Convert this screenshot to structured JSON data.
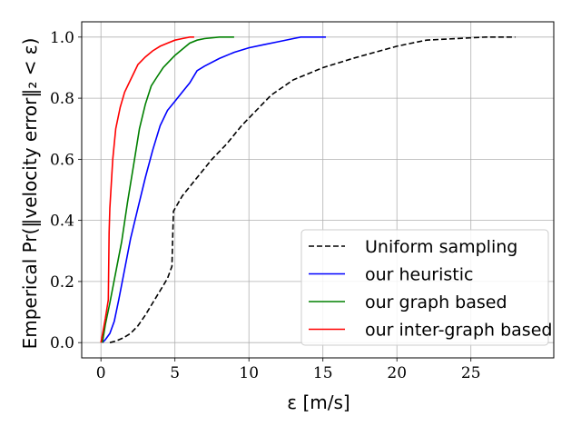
{
  "chart_data": {
    "type": "line",
    "title": "",
    "xlabel": "ε [m/s]",
    "ylabel": "Emperical Pr(‖velocity error‖₂ < ε)",
    "xlim": [
      -1.3,
      30.6
    ],
    "ylim": [
      -0.05,
      1.05
    ],
    "xticks": [
      0,
      5,
      10,
      15,
      20,
      25
    ],
    "yticks": [
      0.0,
      0.2,
      0.4,
      0.6,
      0.8,
      1.0
    ],
    "grid": true,
    "legend_position": "lower-right",
    "series": [
      {
        "name": "Uniform sampling",
        "color": "#000000",
        "style": "dashed",
        "x": [
          0.6,
          1.0,
          1.5,
          2.0,
          2.5,
          3.0,
          3.5,
          4.0,
          4.5,
          4.8,
          4.85,
          4.9,
          5.5,
          6.5,
          7.5,
          8.5,
          9.5,
          10.5,
          11.5,
          13.0,
          15.0,
          17.0,
          18.5,
          20.0,
          21.0,
          22.0,
          24.0,
          26.0,
          28.0
        ],
        "y": [
          0.0,
          0.005,
          0.015,
          0.03,
          0.055,
          0.09,
          0.13,
          0.17,
          0.21,
          0.25,
          0.35,
          0.43,
          0.48,
          0.54,
          0.6,
          0.65,
          0.71,
          0.76,
          0.81,
          0.86,
          0.9,
          0.93,
          0.95,
          0.97,
          0.98,
          0.99,
          0.995,
          1.0,
          1.0
        ]
      },
      {
        "name": "our heuristic",
        "color": "#0000ff",
        "style": "solid",
        "x": [
          0.1,
          0.3,
          0.6,
          0.9,
          1.2,
          1.6,
          2.0,
          2.5,
          3.0,
          3.5,
          4.0,
          4.5,
          5.0,
          5.5,
          6.0,
          6.5,
          7.0,
          8.0,
          9.0,
          10.0,
          11.0,
          12.0,
          13.0,
          13.5,
          14.0,
          15.2
        ],
        "y": [
          0.0,
          0.01,
          0.03,
          0.07,
          0.14,
          0.24,
          0.34,
          0.44,
          0.54,
          0.63,
          0.71,
          0.76,
          0.79,
          0.82,
          0.85,
          0.89,
          0.905,
          0.93,
          0.95,
          0.965,
          0.975,
          0.985,
          0.995,
          1.0,
          1.0,
          1.0
        ]
      },
      {
        "name": "our graph based",
        "color": "#008000",
        "style": "solid",
        "x": [
          0.1,
          0.3,
          0.6,
          1.0,
          1.4,
          1.8,
          2.2,
          2.6,
          3.0,
          3.4,
          3.8,
          4.2,
          4.6,
          5.0,
          5.5,
          6.0,
          6.5,
          7.0,
          8.0,
          9.0
        ],
        "y": [
          0.0,
          0.06,
          0.13,
          0.23,
          0.33,
          0.46,
          0.58,
          0.7,
          0.78,
          0.84,
          0.87,
          0.9,
          0.92,
          0.94,
          0.96,
          0.98,
          0.99,
          0.995,
          1.0,
          1.0
        ]
      },
      {
        "name": "our inter-graph based",
        "color": "#ff0000",
        "style": "solid",
        "x": [
          0.0,
          0.3,
          0.5,
          0.55,
          0.6,
          0.8,
          1.0,
          1.3,
          1.6,
          2.0,
          2.5,
          3.0,
          3.5,
          4.0,
          4.5,
          5.0,
          5.5,
          6.0,
          6.3
        ],
        "y": [
          0.0,
          0.08,
          0.14,
          0.36,
          0.44,
          0.6,
          0.7,
          0.77,
          0.82,
          0.86,
          0.91,
          0.935,
          0.955,
          0.97,
          0.98,
          0.99,
          0.995,
          1.0,
          1.0
        ]
      }
    ]
  }
}
